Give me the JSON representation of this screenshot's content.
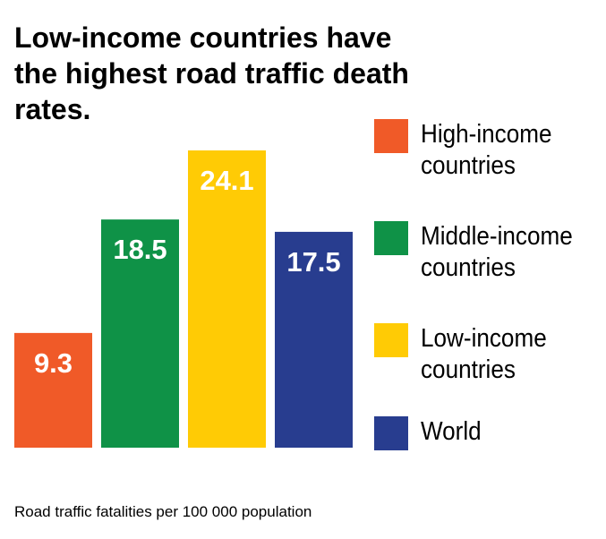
{
  "chart_data": {
    "type": "bar",
    "title": "Low-income countries have the highest road traffic death rates.",
    "categories": [
      "High-income countries",
      "Middle-income countries",
      "Low-income countries",
      "World"
    ],
    "values": [
      9.3,
      18.5,
      24.1,
      17.5
    ],
    "value_labels": [
      "9.3",
      "18.5",
      "24.1",
      "17.5"
    ],
    "colors": [
      "#f05a28",
      "#0f9247",
      "#ffcb05",
      "#283d8f"
    ],
    "ylim": [
      0,
      24.1
    ],
    "xlabel": "",
    "ylabel": "",
    "note": "Road traffic fatalities per 100 000 population"
  },
  "legend": [
    {
      "label": "High-income countries",
      "color": "#f05a28"
    },
    {
      "label": "Middle-income countries",
      "color": "#0f9247"
    },
    {
      "label": "Low-income countries",
      "color": "#ffcb05"
    },
    {
      "label": "World",
      "color": "#283d8f"
    }
  ]
}
